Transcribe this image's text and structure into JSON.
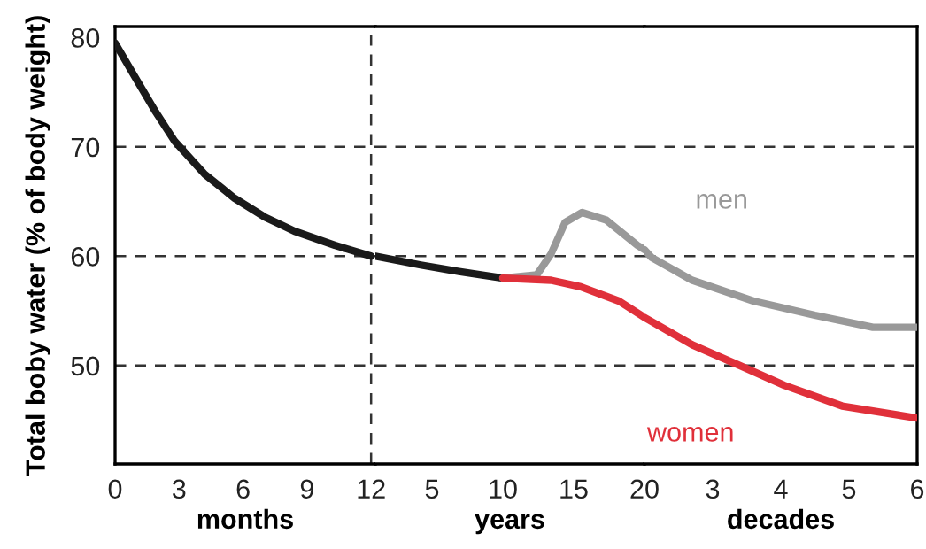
{
  "chart_data": [
    {
      "type": "line",
      "ylabel": "Total boby water (% of body weight)",
      "xlabel": "months",
      "xlim": [
        0,
        12.2
      ],
      "ylim": [
        41,
        81
      ],
      "xticks": [
        0,
        3,
        6,
        9,
        12
      ],
      "yticks": [
        50,
        60,
        70,
        80
      ],
      "tick_labels": "xy",
      "ref_lines": [
        {
          "axis": "y",
          "value": 50,
          "color": "#333333",
          "line_style": "dashed"
        },
        {
          "axis": "y",
          "value": 60,
          "color": "#333333",
          "line_style": "dashed"
        },
        {
          "axis": "y",
          "value": 70,
          "color": "#333333",
          "line_style": "dashed"
        },
        {
          "axis": "x",
          "value": 12,
          "color": "#333333",
          "line_style": "dashed"
        }
      ],
      "marker": "none",
      "line_style": "solid",
      "series": [
        {
          "color": "#1a1a1a",
          "x": [
            0,
            0.9,
            1.9,
            2.8,
            4.2,
            5.6,
            7.0,
            8.4,
            10.3,
            12
          ],
          "values": [
            79.5,
            76.5,
            73.2,
            70.5,
            67.5,
            65.3,
            63.6,
            62.3,
            61.0,
            60.0
          ]
        }
      ]
    },
    {
      "type": "line",
      "xlabel": "years",
      "xlim": [
        1,
        20
      ],
      "ylim": [
        41,
        81
      ],
      "xticks": [
        5,
        10,
        15,
        20
      ],
      "tick_labels": "x",
      "ref_lines": [
        {
          "axis": "y",
          "value": 50,
          "color": "#333333",
          "line_style": "dashed"
        },
        {
          "axis": "y",
          "value": 60,
          "color": "#333333",
          "line_style": "dashed"
        },
        {
          "axis": "y",
          "value": 70,
          "color": "#333333",
          "line_style": "dashed"
        }
      ],
      "marker": "none",
      "line_style": "solid",
      "series": [
        {
          "color": "#1a1a1a",
          "x": [
            1,
            4.2,
            6.9,
            10
          ],
          "values": [
            60.0,
            59.2,
            58.6,
            58.0
          ]
        },
        {
          "color": "#999999",
          "x": [
            10,
            12.4,
            13.4,
            14.4,
            15.6,
            17.3,
            19.5,
            20
          ],
          "values": [
            58.0,
            58.3,
            60.2,
            63.1,
            64.0,
            63.3,
            61.0,
            60.6
          ]
        },
        {
          "color": "#e0303a",
          "x": [
            10,
            13.4,
            15.5,
            18.2,
            20
          ],
          "values": [
            58.0,
            57.8,
            57.2,
            55.9,
            54.4
          ]
        }
      ]
    },
    {
      "type": "line",
      "xlabel": "decades",
      "xlim": [
        2,
        6
      ],
      "ylim": [
        41,
        81
      ],
      "xticks": [
        3,
        4,
        5,
        6
      ],
      "tick_labels": "x",
      "ref_lines": [
        {
          "axis": "y",
          "value": 50,
          "color": "#333333",
          "line_style": "dashed"
        },
        {
          "axis": "y",
          "value": 60,
          "color": "#333333",
          "line_style": "dashed"
        },
        {
          "axis": "y",
          "value": 70,
          "color": "#333333",
          "line_style": "dashed"
        }
      ],
      "marker": "none",
      "line_style": "solid",
      "series": [
        {
          "name": "men",
          "color": "#999999",
          "x": [
            2,
            2.1,
            2.7,
            3.6,
            4.5,
            5.35,
            6
          ],
          "values": [
            60.6,
            59.9,
            57.8,
            55.9,
            54.6,
            53.5,
            53.5
          ]
        },
        {
          "name": "women",
          "color": "#e0303a",
          "x": [
            2,
            2.7,
            3.4,
            4.05,
            4.9,
            6
          ],
          "values": [
            54.4,
            51.9,
            50.0,
            48.2,
            46.3,
            45.2
          ]
        }
      ]
    }
  ]
}
